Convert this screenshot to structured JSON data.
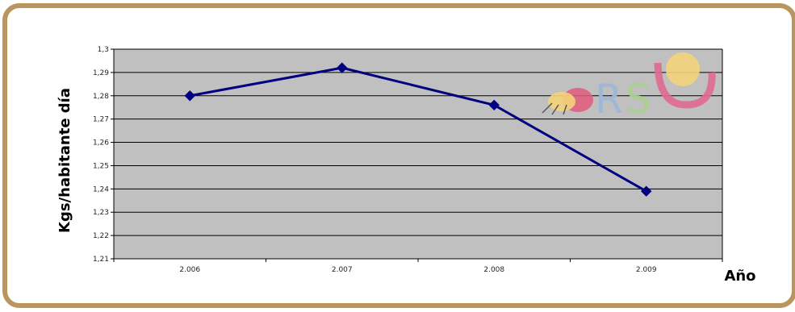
{
  "colors": {
    "frame": "#B9965E",
    "plot_area": "#C0C0C0",
    "gridline": "#000000",
    "series_line": "#000080",
    "logo_r": "#9DB8D8",
    "logo_s": "#A9D08E",
    "logo_u": "#E06A8F",
    "logo_dot": "#F4D47A",
    "logo_leaf": "#E05A7C"
  },
  "logo": {
    "text": "RSU"
  },
  "chart_data": {
    "type": "line",
    "categories": [
      "2.006",
      "2.007",
      "2.008",
      "2.009"
    ],
    "series": [
      {
        "values": [
          1.28,
          1.292,
          1.276,
          1.239
        ]
      }
    ],
    "ylim": [
      1.21,
      1.3
    ],
    "yticks": [
      1.21,
      1.22,
      1.23,
      1.24,
      1.25,
      1.26,
      1.27,
      1.28,
      1.29,
      1.3
    ],
    "ytick_labels": [
      "1,21",
      "1,22",
      "1,23",
      "1,24",
      "1,25",
      "1,26",
      "1,27",
      "1,28",
      "1,29",
      "1,3"
    ],
    "ylabel": "Kgs/habitante día",
    "xlabel": "Año",
    "grid": true,
    "marker": "diamond"
  }
}
